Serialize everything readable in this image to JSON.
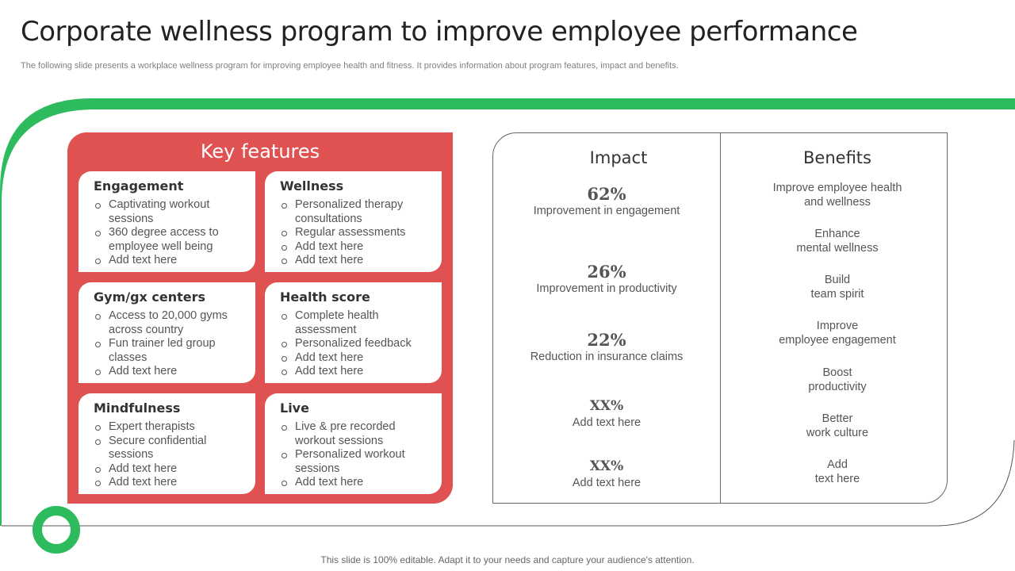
{
  "header": {
    "title": "Corporate wellness program to improve employee performance",
    "subtitle": "The following slide presents a workplace wellness program for improving employee health and fitness. It provides information about program features, impact and benefits."
  },
  "colors": {
    "accent_green": "#2dbb5d",
    "panel_red": "#e05252"
  },
  "key_features": {
    "heading": "Key features",
    "cards": [
      {
        "title": "Engagement",
        "items": [
          "Captivating workout sessions",
          "360 degree access to employee well being",
          "Add text here"
        ]
      },
      {
        "title": "Wellness",
        "items": [
          "Personalized therapy consultations",
          "Regular assessments",
          "Add text here",
          "Add text here"
        ]
      },
      {
        "title": "Gym/gx centers",
        "items": [
          "Access to 20,000 gyms across country",
          "Fun trainer led group classes",
          "Add text here"
        ]
      },
      {
        "title": "Health score",
        "items": [
          "Complete health assessment",
          "Personalized feedback",
          "Add text here",
          "Add text here"
        ]
      },
      {
        "title": "Mindfulness",
        "items": [
          "Expert therapists",
          "Secure confidential sessions",
          "Add text here",
          "Add text here"
        ]
      },
      {
        "title": "Live",
        "items": [
          "Live & pre recorded workout sessions",
          "Personalized workout sessions",
          "Add text here"
        ]
      }
    ]
  },
  "impact": {
    "heading": "Impact",
    "items": [
      {
        "value": "62%",
        "label": "Improvement in engagement"
      },
      {
        "value": "26%",
        "label": "Improvement in productivity"
      },
      {
        "value": "22%",
        "label": "Reduction in insurance claims"
      },
      {
        "value": "XX%",
        "label": "Add text here"
      },
      {
        "value": "XX%",
        "label": "Add text here"
      }
    ]
  },
  "benefits": {
    "heading": "Benefits",
    "items": [
      {
        "line1": "Improve employee health",
        "line2": "and wellness"
      },
      {
        "line1": "Enhance",
        "line2": "mental wellness"
      },
      {
        "line1": "Build",
        "line2": "team spirit"
      },
      {
        "line1": "Improve",
        "line2": "employee engagement"
      },
      {
        "line1": "Boost",
        "line2": "productivity"
      },
      {
        "line1": "Better",
        "line2": "work culture"
      },
      {
        "line1": "Add",
        "line2": "text here"
      }
    ]
  },
  "footer": {
    "note": "This slide is 100% editable. Adapt it to your needs and capture your audience's attention."
  }
}
